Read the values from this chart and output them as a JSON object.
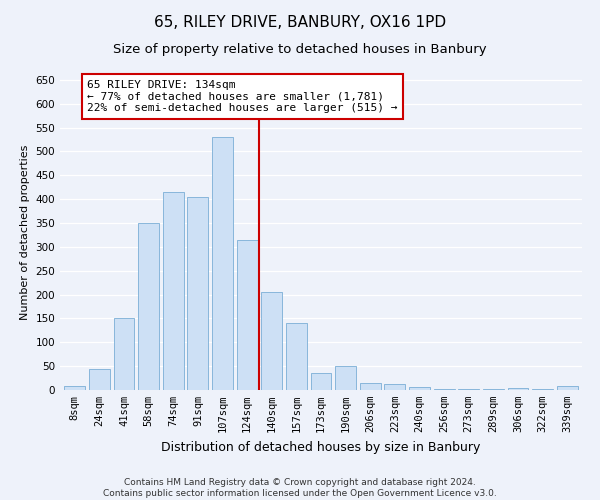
{
  "title": "65, RILEY DRIVE, BANBURY, OX16 1PD",
  "subtitle": "Size of property relative to detached houses in Banbury",
  "xlabel": "Distribution of detached houses by size in Banbury",
  "ylabel": "Number of detached properties",
  "categories": [
    "8sqm",
    "24sqm",
    "41sqm",
    "58sqm",
    "74sqm",
    "91sqm",
    "107sqm",
    "124sqm",
    "140sqm",
    "157sqm",
    "173sqm",
    "190sqm",
    "206sqm",
    "223sqm",
    "240sqm",
    "256sqm",
    "273sqm",
    "289sqm",
    "306sqm",
    "322sqm",
    "339sqm"
  ],
  "values": [
    8,
    45,
    150,
    350,
    415,
    405,
    530,
    315,
    205,
    140,
    35,
    50,
    15,
    13,
    7,
    3,
    2,
    2,
    5,
    2,
    8
  ],
  "bar_color": "#cde0f5",
  "bar_edge_color": "#7aaed6",
  "vline_x_idx": 7,
  "vline_color": "#cc0000",
  "annotation_text": "65 RILEY DRIVE: 134sqm\n← 77% of detached houses are smaller (1,781)\n22% of semi-detached houses are larger (515) →",
  "annotation_box_color": "#ffffff",
  "annotation_box_edge_color": "#cc0000",
  "ylim": [
    0,
    660
  ],
  "yticks": [
    0,
    50,
    100,
    150,
    200,
    250,
    300,
    350,
    400,
    450,
    500,
    550,
    600,
    650
  ],
  "footnote": "Contains HM Land Registry data © Crown copyright and database right 2024.\nContains public sector information licensed under the Open Government Licence v3.0.",
  "background_color": "#eef2fa",
  "grid_color": "#ffffff",
  "title_fontsize": 11,
  "subtitle_fontsize": 9.5,
  "xlabel_fontsize": 9,
  "ylabel_fontsize": 8,
  "tick_fontsize": 7.5,
  "annotation_fontsize": 8,
  "footnote_fontsize": 6.5
}
